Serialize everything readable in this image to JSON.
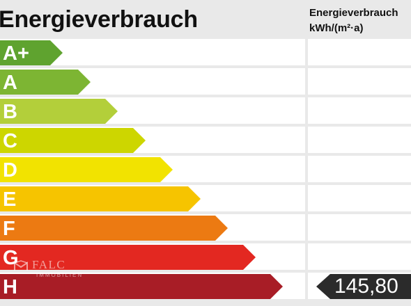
{
  "header": {
    "title": "Energieverbrauch",
    "column_label_line1": "Energieverbrauch",
    "column_label_line2": "kWh/(m²·a)"
  },
  "classes": [
    {
      "label": "A+",
      "color": "#5fa32f"
    },
    {
      "label": "A",
      "color": "#7db533"
    },
    {
      "label": "B",
      "color": "#b3cf3a"
    },
    {
      "label": "C",
      "color": "#cdd600"
    },
    {
      "label": "D",
      "color": "#f2e300"
    },
    {
      "label": "E",
      "color": "#f6c400"
    },
    {
      "label": "F",
      "color": "#ec7a12"
    },
    {
      "label": "G",
      "color": "#e32821"
    },
    {
      "label": "H",
      "color": "#a81d26"
    }
  ],
  "current": {
    "class_label": "H",
    "value": "145,80",
    "marker_color": "#2b2b2b"
  },
  "watermark": {
    "name": "FALC",
    "subtitle": "IMMOBILIEN"
  }
}
